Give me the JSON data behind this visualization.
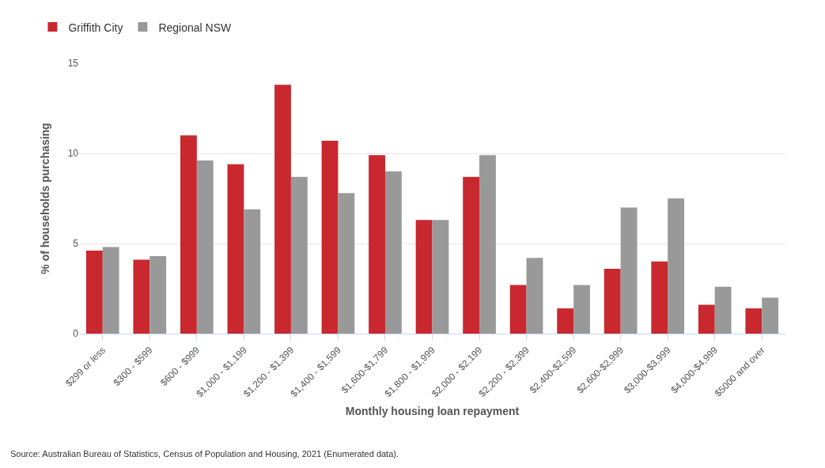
{
  "chart_data": {
    "type": "bar",
    "xlabel": "Monthly housing loan repayment",
    "ylabel": "% of households purchasing",
    "categories": [
      "$299 or less",
      "$300 - $599",
      "$600 - $999",
      "$1,000 - $1,199",
      "$1,200 - $1,399",
      "$1,400 - $1,599",
      "$1,600-$1,799",
      "$1,800 - $1,999",
      "$2,000 - $2,199",
      "$2,200 - $2,399",
      "$2,400-$2,599",
      "$2,600-$2,999",
      "$3,000-$3,999",
      "$4,000-$4,999",
      "$5000 and over"
    ],
    "series": [
      {
        "name": "Griffith City",
        "color": "#c9282e",
        "values": [
          4.6,
          4.1,
          11.0,
          9.4,
          13.8,
          10.7,
          9.9,
          6.3,
          8.7,
          2.7,
          1.4,
          3.6,
          4.0,
          1.6,
          1.4
        ]
      },
      {
        "name": "Regional NSW",
        "color": "#999999",
        "values": [
          4.8,
          4.3,
          9.6,
          6.9,
          8.7,
          7.8,
          9.0,
          6.3,
          9.9,
          4.2,
          2.7,
          7.0,
          7.5,
          2.6,
          2.0
        ]
      }
    ],
    "ylim": [
      0,
      15
    ],
    "yticks": [
      0,
      5,
      10,
      15
    ],
    "grid": "y",
    "legend": "top left",
    "annotations": [
      "Source: Australian Bureau of Statistics, Census of Population and Housing, 2021 (Enumerated data)."
    ]
  }
}
